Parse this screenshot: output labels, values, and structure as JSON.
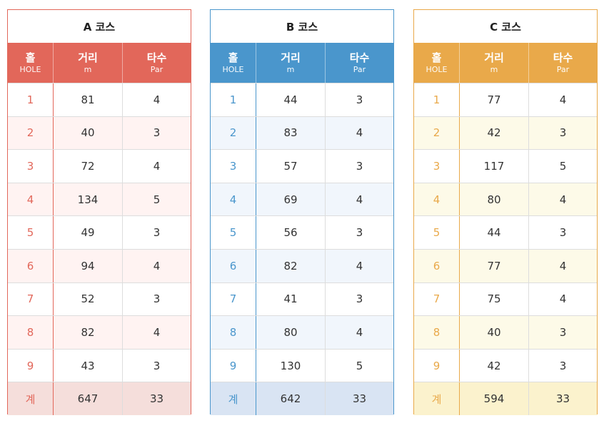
{
  "header": {
    "hole": "홀",
    "hole_en": "HOLE",
    "distance": "거리",
    "distance_unit": "m",
    "par": "타수",
    "par_en": "Par"
  },
  "courses": [
    {
      "title": "A 코스",
      "accent": "#e2675a",
      "alt_row": "#fff3f2",
      "total_bg": "#f5dedb",
      "rows": [
        {
          "hole": "1",
          "m": "81",
          "par": "4"
        },
        {
          "hole": "2",
          "m": "40",
          "par": "3"
        },
        {
          "hole": "3",
          "m": "72",
          "par": "4"
        },
        {
          "hole": "4",
          "m": "134",
          "par": "5"
        },
        {
          "hole": "5",
          "m": "49",
          "par": "3"
        },
        {
          "hole": "6",
          "m": "94",
          "par": "4"
        },
        {
          "hole": "7",
          "m": "52",
          "par": "3"
        },
        {
          "hole": "8",
          "m": "82",
          "par": "4"
        },
        {
          "hole": "9",
          "m": "43",
          "par": "3"
        }
      ],
      "total": {
        "label": "계",
        "m": "647",
        "par": "33"
      }
    },
    {
      "title": "B 코스",
      "accent": "#4a96cc",
      "alt_row": "#f1f6fc",
      "total_bg": "#d9e4f3",
      "rows": [
        {
          "hole": "1",
          "m": "44",
          "par": "3"
        },
        {
          "hole": "2",
          "m": "83",
          "par": "4"
        },
        {
          "hole": "3",
          "m": "57",
          "par": "3"
        },
        {
          "hole": "4",
          "m": "69",
          "par": "4"
        },
        {
          "hole": "5",
          "m": "56",
          "par": "3"
        },
        {
          "hole": "6",
          "m": "82",
          "par": "4"
        },
        {
          "hole": "7",
          "m": "41",
          "par": "3"
        },
        {
          "hole": "8",
          "m": "80",
          "par": "4"
        },
        {
          "hole": "9",
          "m": "130",
          "par": "5"
        }
      ],
      "total": {
        "label": "계",
        "m": "642",
        "par": "33"
      }
    },
    {
      "title": "C 코스",
      "accent": "#e9a94a",
      "alt_row": "#fdfae8",
      "total_bg": "#fbf2cd",
      "rows": [
        {
          "hole": "1",
          "m": "77",
          "par": "4"
        },
        {
          "hole": "2",
          "m": "42",
          "par": "3"
        },
        {
          "hole": "3",
          "m": "117",
          "par": "5"
        },
        {
          "hole": "4",
          "m": "80",
          "par": "4"
        },
        {
          "hole": "5",
          "m": "44",
          "par": "3"
        },
        {
          "hole": "6",
          "m": "77",
          "par": "4"
        },
        {
          "hole": "7",
          "m": "75",
          "par": "4"
        },
        {
          "hole": "8",
          "m": "40",
          "par": "3"
        },
        {
          "hole": "9",
          "m": "42",
          "par": "3"
        }
      ],
      "total": {
        "label": "계",
        "m": "594",
        "par": "33"
      }
    }
  ]
}
